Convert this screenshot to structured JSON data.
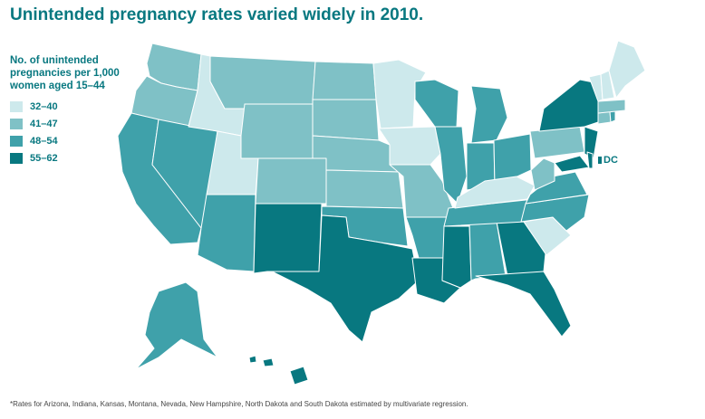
{
  "title": "Unintended pregnancy rates varied widely in 2010.",
  "legend": {
    "title_lines": [
      "No. of unintended",
      "pregnancies per 1,000",
      "women aged 15–44"
    ],
    "items": [
      {
        "label": "32–40",
        "color": "#cde9ec"
      },
      {
        "label": "41–47",
        "color": "#7fc1c6"
      },
      {
        "label": "48–54",
        "color": "#3fa1aa"
      },
      {
        "label": "55–62",
        "color": "#087880"
      }
    ]
  },
  "dc_label": "DC",
  "footnote": "*Rates for Arizona, Indiana, Kansas, Montana, Nevada, New Hampshire, North Dakota and South Dakota estimated by multivariate regression."
}
